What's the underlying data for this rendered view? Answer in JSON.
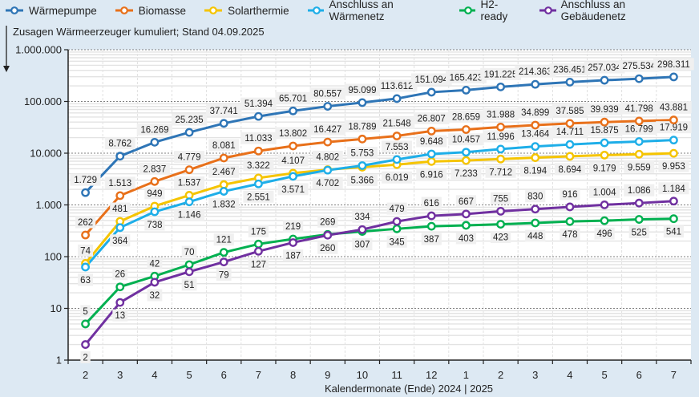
{
  "chart_data": {
    "type": "line",
    "title": "",
    "ylabel": "Zusagen Wärmeerzeuger kumuliert; Stand  04.09.2025",
    "xlabel": "Kalendermonate (Ende)     2024 | 2025",
    "yscale": "log",
    "ylim": [
      1,
      1000000
    ],
    "yticks": [
      "1",
      "10",
      "100",
      "1.000",
      "10.000",
      "100.000",
      "1.000.000"
    ],
    "categories": [
      "2",
      "3",
      "4",
      "5",
      "6",
      "7",
      "8",
      "9",
      "10",
      "11",
      "12",
      "1",
      "2",
      "3",
      "4",
      "5",
      "6",
      "7"
    ],
    "grid": true,
    "legend_position": "top",
    "series": [
      {
        "name": "Wärmepumpe",
        "color": "#2e75b6",
        "values": [
          1729,
          8762,
          16269,
          25235,
          37741,
          51394,
          65701,
          80557,
          95099,
          113612,
          151094,
          165423,
          191225,
          214363,
          236451,
          257034,
          275534,
          298311
        ]
      },
      {
        "name": "Biomasse",
        "color": "#e8701a",
        "values": [
          262,
          1513,
          2837,
          4779,
          8081,
          11033,
          13802,
          16427,
          18789,
          21548,
          26807,
          28659,
          31988,
          34899,
          37585,
          39939,
          41798,
          43881
        ]
      },
      {
        "name": "Solarthermie",
        "color": "#f5c400",
        "values": [
          74,
          481,
          949,
          1537,
          2467,
          3322,
          4107,
          4802,
          5366,
          6019,
          6916,
          7233,
          7712,
          8194,
          8694,
          9179,
          9559,
          9953
        ]
      },
      {
        "name": "Anschluss an Wärmenetz",
        "color": "#1eaee8",
        "values": [
          63,
          364,
          738,
          1146,
          1832,
          2551,
          3571,
          4702,
          5753,
          7553,
          9648,
          10457,
          11996,
          13464,
          14711,
          15875,
          16799,
          17919
        ]
      },
      {
        "name": "H2-ready",
        "color": "#00b050",
        "values": [
          5,
          26,
          42,
          70,
          121,
          175,
          219,
          269,
          307,
          345,
          387,
          403,
          423,
          448,
          478,
          496,
          525,
          541
        ]
      },
      {
        "name": "Anschluss an Gebäudenetz",
        "color": "#7030a0",
        "values": [
          2,
          13,
          32,
          51,
          79,
          127,
          187,
          260,
          334,
          479,
          616,
          667,
          755,
          830,
          916,
          1004,
          1086,
          1184
        ]
      }
    ]
  }
}
